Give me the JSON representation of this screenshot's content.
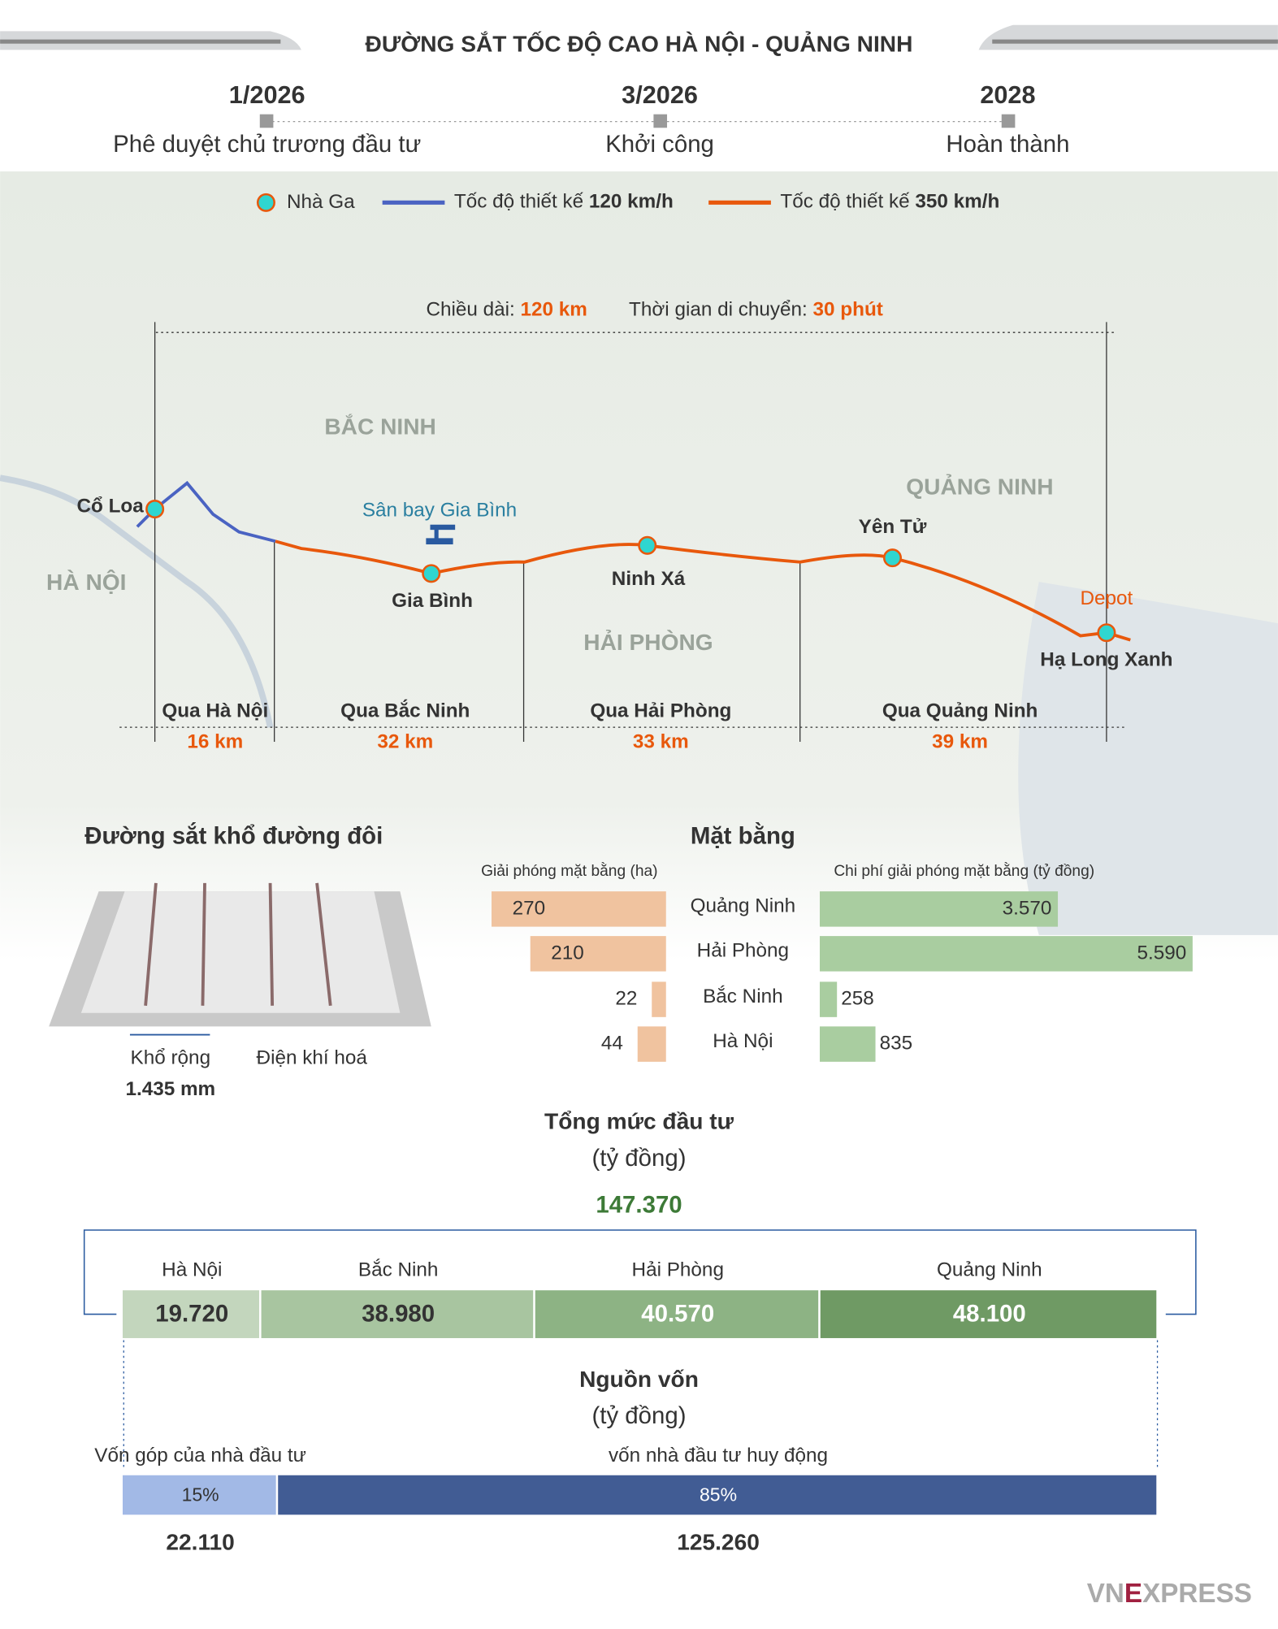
{
  "header": {
    "title": "ĐƯỜNG SẮT TỐC ĐỘ CAO HÀ NỘI - QUẢNG NINH"
  },
  "timeline": [
    {
      "date": "1/2026",
      "label": "Phê duyệt chủ trương đầu tư"
    },
    {
      "date": "3/2026",
      "label": "Khởi công"
    },
    {
      "date": "2028",
      "label": "Hoàn thành"
    }
  ],
  "legend": {
    "station": "Nhà Ga",
    "blue_prefix": "Tốc độ thiết kế ",
    "blue_speed": "120 km/h",
    "orange_prefix": "Tốc độ thiết kế ",
    "orange_speed": "350 km/h"
  },
  "map": {
    "length_label": "Chiều dài: ",
    "length": "120 km",
    "time_label": "Thời gian di chuyển: ",
    "time": "30 phút",
    "regions": [
      "BẮC NINH",
      "HÀ NỘI",
      "HẢI PHÒNG",
      "QUẢNG NINH"
    ],
    "airport": "Sân bay Gia Bình",
    "stations": [
      "Cổ Loa",
      "Gia Bình",
      "Ninh Xá",
      "Yên Tử",
      "Hạ Long Xanh"
    ],
    "depot": "Depot",
    "segments": [
      {
        "label": "Qua Hà Nội",
        "length": "16 km"
      },
      {
        "label": "Qua Bắc Ninh",
        "length": "32 km"
      },
      {
        "label": "Qua Hải Phòng",
        "length": "33 km"
      },
      {
        "label": "Qua Quảng Ninh",
        "length": "39 km"
      }
    ]
  },
  "track": {
    "title": "Đường sắt khổ đường đôi",
    "gauge_label": "Khổ rộng",
    "gauge": "1.435 mm",
    "electrified": "Điện khí hoá"
  },
  "land": {
    "title": "Mặt bằng",
    "area_title": "Giải phóng mặt bằng (ha)",
    "cost_title": "Chi phí giải phóng mặt bằng (tỷ đồng)",
    "rows": [
      {
        "province": "Quảng Ninh",
        "area": 270,
        "cost": {
          "value": 3570,
          "label": "3.570"
        }
      },
      {
        "province": "Hải Phòng",
        "area": 210,
        "cost": {
          "value": 5590,
          "label": "5.590"
        }
      },
      {
        "province": "Bắc Ninh",
        "area": 22,
        "cost": 258
      },
      {
        "province": "Hà Nội",
        "area": 44,
        "cost": 835
      }
    ]
  },
  "investment": {
    "title": "Tổng mức đầu tư",
    "unit": "(tỷ đồng)",
    "total": {
      "value": 147370,
      "label": "147.370"
    },
    "parts": [
      {
        "province": "Hà Nội",
        "amount": {
          "value": 19720,
          "label": "19.720"
        }
      },
      {
        "province": "Bắc Ninh",
        "amount": {
          "value": 38980,
          "label": "38.980"
        }
      },
      {
        "province": "Hải Phòng",
        "amount": {
          "value": 40570,
          "label": "40.570"
        }
      },
      {
        "province": "Quảng Ninh",
        "amount": {
          "value": 48100,
          "label": "48.100"
        }
      }
    ]
  },
  "funding": {
    "title": "Nguồn vốn",
    "unit": "(tỷ đồng)",
    "parts": [
      {
        "name": "Vốn góp của nhà đầu tư",
        "share": {
          "value": 15,
          "label": "15%"
        },
        "amount": "22.110"
      },
      {
        "name": "vốn nhà đầu tư huy động",
        "share": {
          "value": 85,
          "label": "85%"
        },
        "amount": "125.260"
      }
    ]
  },
  "footer": {
    "logo_left": "VN",
    "logo_mid": "E",
    "logo_right": "XPRESS"
  }
}
